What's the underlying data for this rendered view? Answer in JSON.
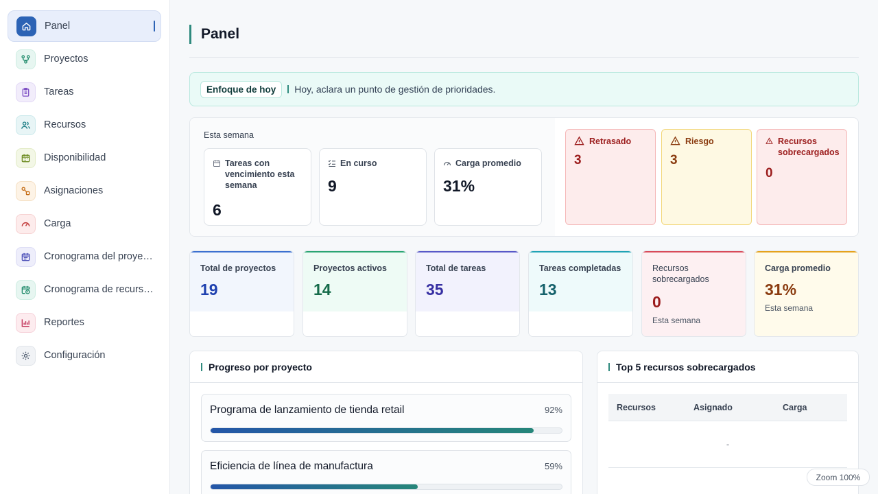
{
  "sidebar": {
    "items": [
      {
        "label": "Panel",
        "icon": "home-icon",
        "active": true
      },
      {
        "label": "Proyectos",
        "icon": "branch-icon"
      },
      {
        "label": "Tareas",
        "icon": "clipboard-icon"
      },
      {
        "label": "Recursos",
        "icon": "users-icon"
      },
      {
        "label": "Disponibilidad",
        "icon": "calendar-icon"
      },
      {
        "label": "Asignaciones",
        "icon": "link-icon"
      },
      {
        "label": "Carga",
        "icon": "gauge-icon"
      },
      {
        "label": "Cronograma del proye…",
        "icon": "calendar-list-icon"
      },
      {
        "label": "Cronograma de recursos",
        "icon": "calendar-clock-icon"
      },
      {
        "label": "Reportes",
        "icon": "bar-chart-icon"
      },
      {
        "label": "Configuración",
        "icon": "gear-icon"
      }
    ]
  },
  "header": {
    "title": "Panel"
  },
  "focus": {
    "chip": "Enfoque de hoy",
    "text": "Hoy, aclara un punto de gestión de prioridades."
  },
  "week": {
    "title": "Esta semana",
    "stats": [
      {
        "label": "Tareas con vencimiento esta semana",
        "value": "6"
      },
      {
        "label": "En curso",
        "value": "9"
      },
      {
        "label": "Carga promedio",
        "value": "31%"
      }
    ],
    "alerts": [
      {
        "label": "Retrasado",
        "value": "3"
      },
      {
        "label": "Riesgo",
        "value": "3"
      },
      {
        "label": "Recursos sobrecargados",
        "value": "0"
      }
    ]
  },
  "kpis": [
    {
      "label": "Total de proyectos",
      "value": "19",
      "sub": ""
    },
    {
      "label": "Proyectos activos",
      "value": "14",
      "sub": ""
    },
    {
      "label": "Total de tareas",
      "value": "35",
      "sub": ""
    },
    {
      "label": "Tareas completadas",
      "value": "13",
      "sub": ""
    },
    {
      "label": "Recursos sobrecargados",
      "value": "0",
      "sub": "Esta semana"
    },
    {
      "label": "Carga promedio",
      "value": "31%",
      "sub": "Esta semana"
    }
  ],
  "progress": {
    "title": "Progreso por proyecto",
    "projects": [
      {
        "name": "Programa de lanzamiento de tienda retail",
        "pct_label": "92%",
        "progress": 0.92
      },
      {
        "name": "Eficiencia de línea de manufactura",
        "pct_label": "59%",
        "progress": 0.59
      }
    ]
  },
  "top_resources": {
    "title": "Top 5 recursos sobrecargados",
    "columns": [
      "Recursos",
      "Asignado",
      "Carga"
    ],
    "empty": "-"
  },
  "zoom": "Zoom 100%",
  "colors": {
    "accent": "#2f8a7e",
    "primary": "#2c63b5",
    "danger": "#9b1c1c",
    "warning": "#8a3b0f"
  }
}
